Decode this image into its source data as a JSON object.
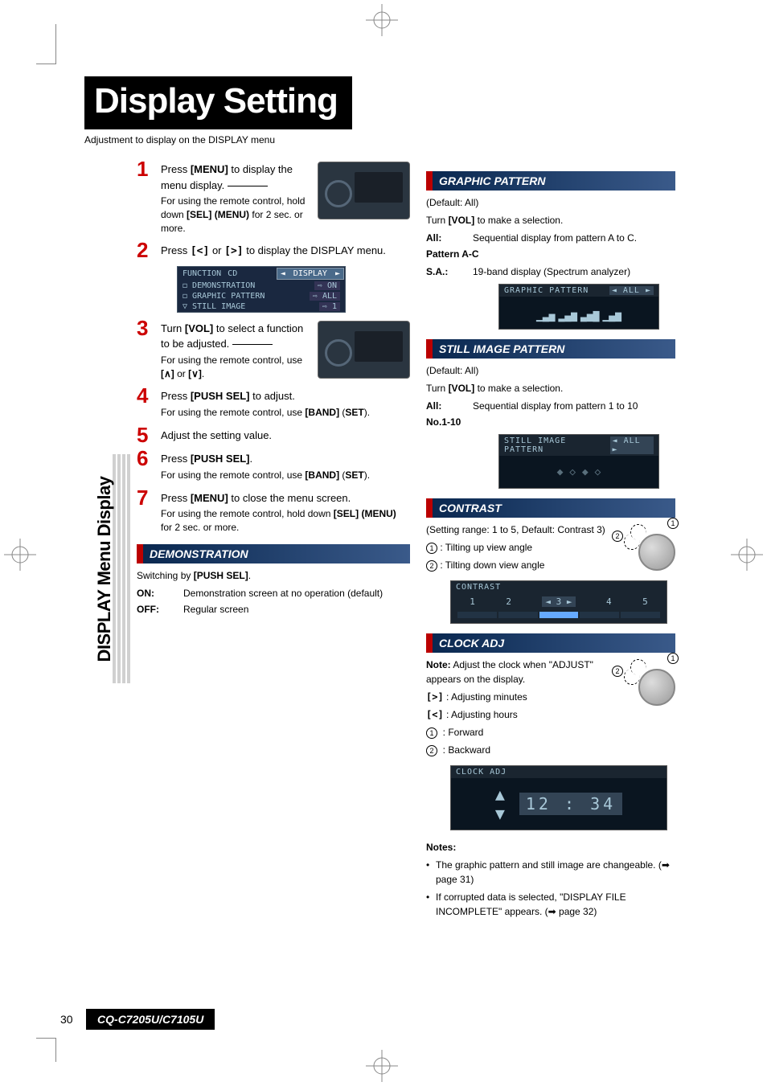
{
  "title": "Display Setting",
  "subtitle": "Adjustment to display on the DISPLAY menu",
  "side_tab": "DISPLAY Menu Display",
  "steps": [
    {
      "num": "1",
      "text_pre": "Press ",
      "bold": "[MENU]",
      "text_post": " to display the menu display.",
      "note": "For using the remote control, hold down <b>[SEL] (MENU)</b> for 2 sec. or more."
    },
    {
      "num": "2",
      "text_pre": "Press ",
      "bold": "[<]",
      "mid": " or ",
      "bold2": "[>]",
      "text_post": " to display the DISPLAY menu."
    },
    {
      "num": "3",
      "text_pre": "Turn ",
      "bold": "[VOL]",
      "text_post": " to select a function to be adjusted.",
      "note": "For using the remote control, use <b>[∧]</b> or <b>[∨]</b>."
    },
    {
      "num": "4",
      "text_pre": "Press ",
      "bold": "[PUSH SEL]",
      "text_post": " to adjust.",
      "note": "For using the remote control, use <b>[BAND]</b> (<b>SET</b>)."
    },
    {
      "num": "5",
      "text_pre": "Adjust the setting value."
    },
    {
      "num": "6",
      "text_pre": "Press ",
      "bold": "[PUSH SEL]",
      "text_post": ".",
      "note": "For using the remote control, use <b>[BAND]</b> (<b>SET</b>)."
    },
    {
      "num": "7",
      "text_pre": "Press ",
      "bold": "[MENU]",
      "text_post": " to close the menu screen.",
      "note": "For using the remote control, hold down <b>[SEL] (MENU)</b> for 2 sec. or more."
    }
  ],
  "menu_lcd": {
    "tabs": [
      "FUNCTION",
      "CD",
      "DISPLAY"
    ],
    "active_tab": 2,
    "rows": [
      {
        "label": "DEMONSTRATION",
        "val": "ON"
      },
      {
        "label": "GRAPHIC PATTERN",
        "val": "ALL"
      },
      {
        "label": "STILL IMAGE",
        "val": "1"
      }
    ]
  },
  "demonstration": {
    "header": "DEMONSTRATION",
    "switch_text": "Switching by <b>[PUSH SEL]</b>.",
    "on_label": "ON:",
    "on_text": "Demonstration screen at no operation (default)",
    "off_label": "OFF:",
    "off_text": "Regular screen"
  },
  "graphic_pattern": {
    "header": "GRAPHIC PATTERN",
    "default": "(Default: All)",
    "turn_text": "Turn <b>[VOL]</b> to make a selection.",
    "all_label": "All:",
    "all_text": "Sequential display from pattern A to C.",
    "pattern_label": "Pattern A-C",
    "sa_label": "S.A.:",
    "sa_text": "19-band display (Spectrum analyzer)",
    "lcd_title": "GRAPHIC PATTERN",
    "lcd_badge": "◄ ALL ►"
  },
  "still_image": {
    "header": "STILL IMAGE PATTERN",
    "default": "(Default: All)",
    "turn_text": "Turn <b>[VOL]</b> to make a selection.",
    "all_label": "All:",
    "all_text": "Sequential display from pattern 1 to 10",
    "no_label": "No.1-10",
    "lcd_title": "STILL IMAGE PATTERN",
    "lcd_badge": "◄ ALL ►"
  },
  "contrast": {
    "header": "CONTRAST",
    "range": "(Setting range: 1 to 5, Default: Contrast 3)",
    "line1_num": "①",
    "line1_text": ": Tilting up view angle",
    "line2_num": "②",
    "line2_text": ": Tilting down view angle",
    "lcd_title": "CONTRAST",
    "values": [
      "1",
      "2",
      "◄ 3 ►",
      "4",
      "5"
    ]
  },
  "clock": {
    "header": "CLOCK ADJ",
    "note": "<b>Note:</b> Adjust the clock when \"ADJUST\" appears on the display.",
    "line1": "[>] : Adjusting minutes",
    "line2": "[<] : Adjusting hours",
    "line3_num": "①",
    "line3_text": ": Forward",
    "line4_num": "②",
    "line4_text": ": Backward",
    "lcd_title": "CLOCK ADJ",
    "time": "12 : 34"
  },
  "notes": {
    "header": "Notes:",
    "items": [
      "The graphic pattern and still image are changeable. (➡ page 31)",
      "If corrupted data is selected, \"DISPLAY FILE INCOMPLETE\" appears. (➡ page 32)"
    ]
  },
  "footer": {
    "page": "30",
    "model": "CQ-C7205U/C7105U"
  },
  "colors": {
    "accent_red": "#c00",
    "header_grad_from": "#0a2850",
    "header_grad_to": "#3a5a8a",
    "header_border": "#b00",
    "lcd_bg": "#1a2530",
    "lcd_text": "#a8c8d8"
  }
}
